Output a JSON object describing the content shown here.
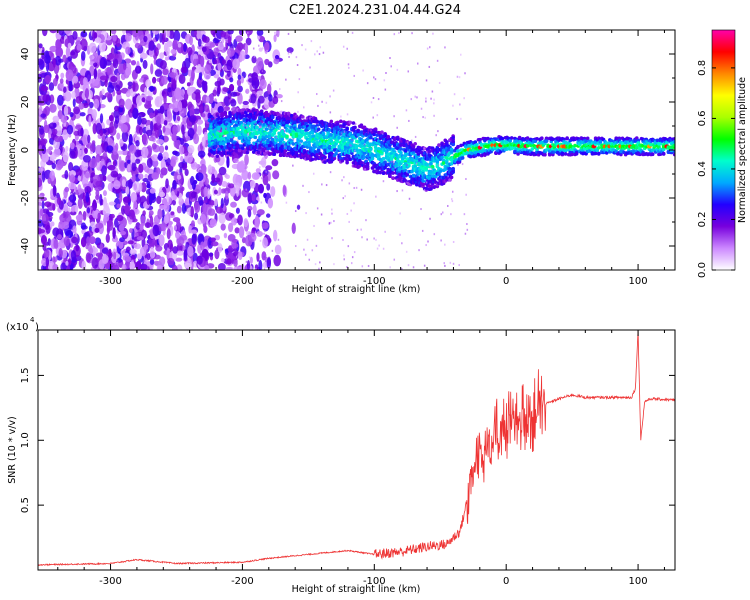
{
  "title": "C2E1.2024.231.04.44.G24",
  "chart_data": [
    {
      "type": "heatmap",
      "xlabel": "Height of straight line (km)",
      "ylabel": "Frequency (Hz)",
      "xlim": [
        -355,
        128
      ],
      "ylim": [
        -50,
        50
      ],
      "xticks": [
        -300,
        -200,
        -100,
        0,
        100
      ],
      "yticks": [
        -40,
        -20,
        0,
        20,
        40
      ],
      "colorbar": {
        "label": "Normalized spectral amplitude",
        "range": [
          0,
          0.95
        ],
        "ticks": [
          0.0,
          0.2,
          0.4,
          0.6,
          0.8
        ],
        "colors": [
          "#ffffff",
          "#cc88ff",
          "#7700dd",
          "#2200ff",
          "#00aaff",
          "#00ffcc",
          "#00ff00",
          "#aaff00",
          "#ffff00",
          "#ff8800",
          "#ff0000",
          "#ff00aa"
        ]
      },
      "ridge": {
        "x": [
          -220,
          -200,
          -180,
          -160,
          -140,
          -120,
          -100,
          -80,
          -60,
          -50,
          -40,
          -30,
          -20,
          -10,
          0,
          20,
          40,
          60,
          80,
          95,
          100,
          110,
          128
        ],
        "y": [
          6,
          8,
          7,
          6,
          4,
          3,
          0,
          -4,
          -8,
          -6,
          -3,
          0,
          1,
          2,
          2,
          1.5,
          1.5,
          1.5,
          1.5,
          1.5,
          1.5,
          1.5,
          1.5
        ]
      }
    },
    {
      "type": "line",
      "xlabel": "Height of straight line (km)",
      "ylabel": "SNR (10 * v/v)",
      "yunit": "(x10^4)",
      "xlim": [
        -355,
        128
      ],
      "ylim": [
        0,
        1.85
      ],
      "xticks": [
        -300,
        -200,
        -100,
        0,
        100
      ],
      "yticks": [
        0.5,
        1.0,
        1.5
      ],
      "series": [
        {
          "color": "#ee3333",
          "x": [
            -355,
            -300,
            -280,
            -250,
            -200,
            -180,
            -150,
            -120,
            -100,
            -80,
            -60,
            -45,
            -35,
            -28,
            -20,
            -10,
            0,
            10,
            20,
            30,
            40,
            50,
            60,
            80,
            95,
            98,
            100,
            102,
            105,
            110,
            128
          ],
          "y": [
            0.04,
            0.05,
            0.08,
            0.05,
            0.06,
            0.09,
            0.12,
            0.15,
            0.12,
            0.14,
            0.18,
            0.2,
            0.3,
            0.6,
            0.95,
            1.0,
            1.1,
            1.15,
            1.2,
            1.28,
            1.32,
            1.35,
            1.33,
            1.33,
            1.33,
            1.4,
            1.85,
            1.0,
            1.3,
            1.32,
            1.31
          ]
        }
      ]
    }
  ]
}
